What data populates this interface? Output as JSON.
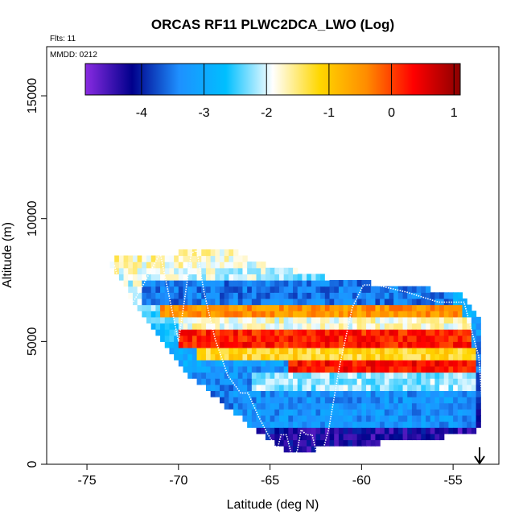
{
  "chart_data": {
    "type": "heatmap",
    "title": "ORCAS RF11 PLWC2DCA_LWO (Log)",
    "annotations": [
      "Flts: 11",
      "MMDD: 0212"
    ],
    "xlabel": "Latitude (deg N)",
    "ylabel": "Altitude (m)",
    "xlim": [
      -77.2,
      -52.5
    ],
    "ylim": [
      0,
      17000
    ],
    "x_ticks": [
      -75,
      -70,
      -65,
      -60,
      -55
    ],
    "y_ticks": [
      0,
      5000,
      10000,
      15000
    ],
    "grid": false,
    "colorbar": {
      "position": "top-inside",
      "range": [
        -4.9,
        1.1
      ],
      "ticks": [
        -4,
        -3,
        -2,
        -1,
        0,
        1
      ],
      "colors": [
        "#8a2be2",
        "#00008b",
        "#1e90ff",
        "#00bfff",
        "#ffffff",
        "#ffd700",
        "#ff8c00",
        "#ff0000",
        "#8b0000"
      ]
    },
    "cell_size": {
      "lat": 0.25,
      "alt": 250
    },
    "domain_outline": {
      "lat": [
        -73.9,
        -72.9,
        -67.0,
        -66.0,
        -61.0,
        -58.0,
        -54.5,
        -53.6,
        -53.6,
        -54.0,
        -57.0,
        -61.0,
        -64.0,
        -66.0,
        -70.0,
        -73.9
      ],
      "alt": [
        8250,
        8500,
        8750,
        8250,
        7500,
        7250,
        7000,
        6000,
        1500,
        1250,
        1000,
        750,
        500,
        1500,
        4000,
        8250
      ]
    },
    "altitude_bands": [
      {
        "alt_range": [
          6500,
          7500
        ],
        "lat_range": [
          -72.0,
          -55.0
        ],
        "value": -3.5
      },
      {
        "alt_range": [
          6000,
          6500
        ],
        "lat_range": [
          -71.0,
          -54.5
        ],
        "value": -0.5
      },
      {
        "alt_range": [
          5500,
          6000
        ],
        "lat_range": [
          -70.0,
          -54.0
        ],
        "value": -1.8
      },
      {
        "alt_range": [
          4750,
          5500
        ],
        "lat_range": [
          -70.0,
          -54.0
        ],
        "value": 0.2
      },
      {
        "alt_range": [
          4250,
          4750
        ],
        "lat_range": [
          -69.0,
          -53.8
        ],
        "value": -1.2
      },
      {
        "alt_range": [
          3750,
          4250
        ],
        "lat_range": [
          -64.0,
          -53.7
        ],
        "value": 0.3
      },
      {
        "alt_range": [
          3000,
          3750
        ],
        "lat_range": [
          -66.0,
          -53.7
        ],
        "value": -2.2
      },
      {
        "alt_range": [
          1500,
          3000
        ],
        "lat_range": [
          -67.0,
          -53.7
        ],
        "value": -3.3
      },
      {
        "alt_range": [
          500,
          1500
        ],
        "lat_range": [
          -64.0,
          -58.0
        ],
        "value": -4.3
      }
    ],
    "flight_track": {
      "lat": [
        -73.5,
        -72.8,
        -72.0,
        -71.0,
        -70.0,
        -69.3,
        -69.0,
        -68.6,
        -68.0,
        -67.3,
        -66.6,
        -66.2,
        -65.6,
        -65.1,
        -64.6,
        -64.4,
        -64.1,
        -63.9,
        -63.7,
        -63.5,
        -63.3,
        -63.0,
        -62.7,
        -62.4,
        -62.1,
        -61.8,
        -61.2,
        -60.5,
        -59.9,
        -59.2,
        -57.5,
        -55.8,
        -54.4,
        -53.9,
        -53.6,
        -53.3
      ],
      "alt": [
        8100,
        6200,
        7200,
        8600,
        5000,
        8600,
        8700,
        7000,
        5100,
        3600,
        2900,
        2900,
        1900,
        1200,
        600,
        1200,
        1200,
        600,
        100,
        600,
        1400,
        1200,
        1200,
        300,
        600,
        1400,
        4000,
        6400,
        7300,
        7300,
        7000,
        6600,
        6600,
        5200,
        4400,
        1500
      ]
    }
  }
}
